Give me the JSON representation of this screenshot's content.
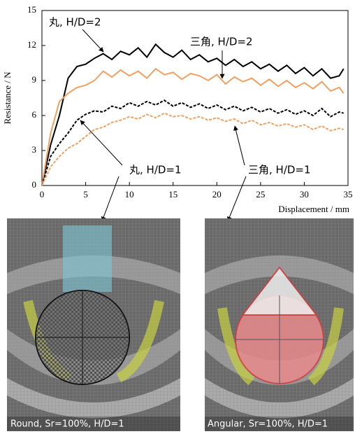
{
  "chart_data": {
    "type": "line",
    "xlabel": "Displacement / mm",
    "ylabel": "Resistance / N",
    "x": [
      0,
      1,
      2,
      3,
      4,
      5,
      6,
      7,
      8,
      9,
      10,
      11,
      12,
      13,
      14,
      15,
      16,
      17,
      18,
      19,
      20,
      21,
      22,
      23,
      24,
      25,
      26,
      27,
      28,
      29,
      30,
      31,
      32,
      33,
      34,
      34.5
    ],
    "series": [
      {
        "name": "丸, H/D=2",
        "color": "#000000",
        "dashed": false,
        "values": [
          0,
          3.5,
          6,
          9.2,
          10.2,
          10.4,
          10.9,
          11.3,
          10.8,
          11.5,
          11.2,
          11.8,
          11.0,
          12.1,
          11.4,
          11.0,
          11.6,
          10.8,
          11.2,
          10.6,
          10.9,
          10.3,
          10.8,
          10.2,
          10.6,
          10.0,
          10.4,
          9.8,
          10.3,
          9.6,
          10.1,
          9.4,
          10.0,
          9.2,
          9.4,
          10.0
        ]
      },
      {
        "name": "三角, H/D=2",
        "color": "#f0a060",
        "dashed": false,
        "values": [
          0,
          4.5,
          7.2,
          7.9,
          8.4,
          8.6,
          9.0,
          9.8,
          9.3,
          9.9,
          9.4,
          9.8,
          9.2,
          10.0,
          9.5,
          9.7,
          9.1,
          9.6,
          9.4,
          9.0,
          9.5,
          8.7,
          9.3,
          8.9,
          9.2,
          8.6,
          9.1,
          8.5,
          9.0,
          8.4,
          8.8,
          8.3,
          8.9,
          8.1,
          8.4,
          7.9
        ]
      },
      {
        "name": "丸, H/D=1",
        "color": "#000000",
        "dashed": true,
        "values": [
          0,
          2.5,
          3.6,
          4.5,
          5.6,
          6.1,
          6.4,
          6.3,
          6.8,
          6.6,
          7.1,
          6.8,
          7.2,
          6.9,
          7.3,
          6.8,
          7.1,
          6.7,
          7.0,
          6.6,
          6.9,
          6.5,
          6.8,
          6.4,
          6.7,
          6.3,
          6.6,
          6.2,
          6.5,
          6.1,
          6.4,
          6.0,
          6.6,
          5.9,
          6.3,
          6.2
        ]
      },
      {
        "name": "三角, H/D=1",
        "color": "#f0a060",
        "dashed": true,
        "values": [
          0,
          1.6,
          2.5,
          3.2,
          3.6,
          4.2,
          4.8,
          5.0,
          5.4,
          5.6,
          5.9,
          5.7,
          6.1,
          5.8,
          6.2,
          5.9,
          6.0,
          5.7,
          5.9,
          5.6,
          5.8,
          5.5,
          5.7,
          5.3,
          5.6,
          5.2,
          5.4,
          5.1,
          5.3,
          5.0,
          5.2,
          4.8,
          5.1,
          4.7,
          4.9,
          4.8
        ]
      }
    ],
    "xlim": [
      0,
      35
    ],
    "xticks": [
      0,
      5,
      10,
      15,
      20,
      25,
      30,
      35
    ],
    "ylim": [
      0,
      15
    ],
    "yticks": [
      0,
      3,
      6,
      9,
      12,
      15
    ]
  },
  "panels": [
    {
      "caption": "Round, Sr=100%,  H/D=1"
    },
    {
      "caption": "Angular, Sr=100%,  H/D=1"
    }
  ]
}
